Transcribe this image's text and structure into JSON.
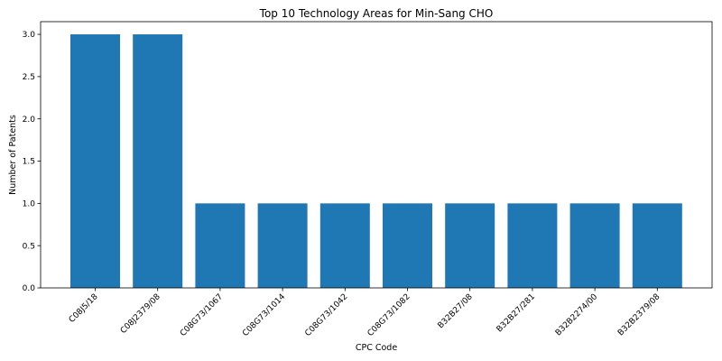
{
  "chart_data": {
    "type": "bar",
    "title": "Top 10 Technology Areas for Min-Sang CHO",
    "xlabel": "CPC Code",
    "ylabel": "Number of Patents",
    "categories": [
      "C08J5/18",
      "C08J2379/08",
      "C08G73/1067",
      "C08G73/1014",
      "C08G73/1042",
      "C08G73/1082",
      "B32B27/08",
      "B32B27/281",
      "B32B2274/00",
      "B32B2379/08"
    ],
    "values": [
      3,
      3,
      1,
      1,
      1,
      1,
      1,
      1,
      1,
      1
    ],
    "ylim": [
      0,
      3.15
    ],
    "yticks": [
      "0.0",
      "0.5",
      "1.0",
      "1.5",
      "2.0",
      "2.5",
      "3.0"
    ],
    "bar_color": "#1f77b4",
    "grid": false,
    "legend": "none"
  }
}
